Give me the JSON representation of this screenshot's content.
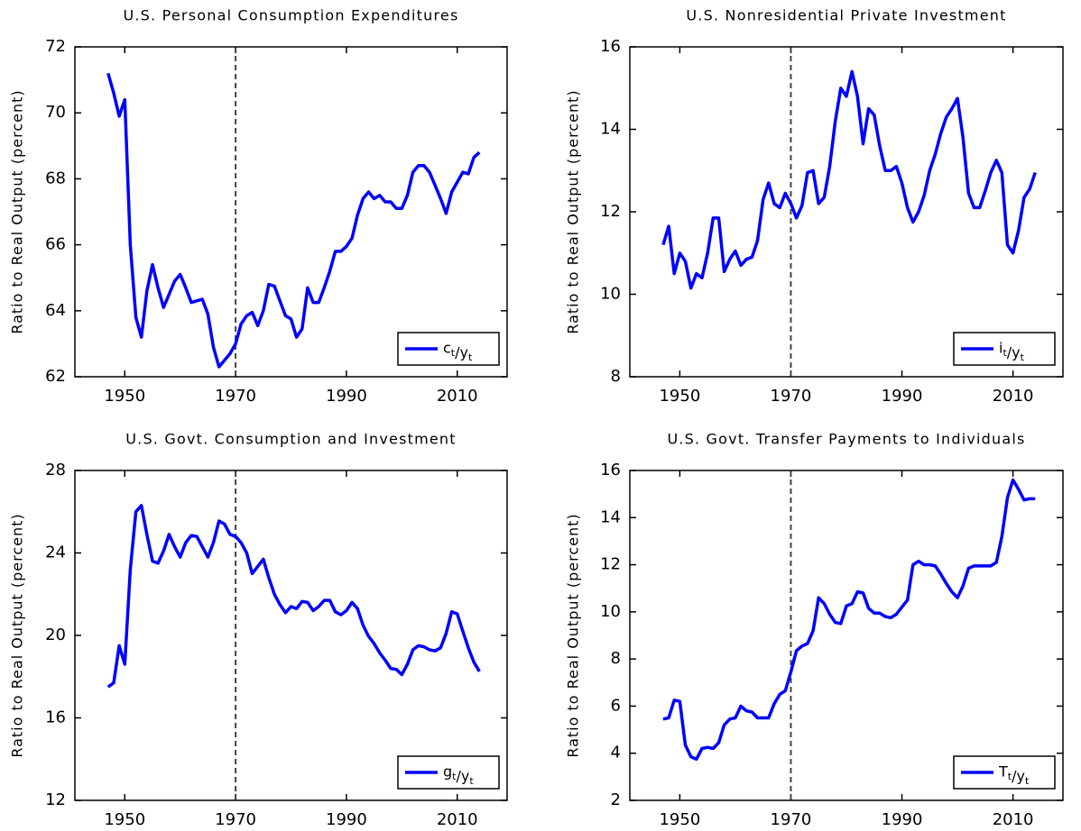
{
  "chart_data": [
    {
      "type": "line",
      "title": "U.S. Personal Consumption Expenditures",
      "ylabel": "Ratio to Real Output (percent)",
      "x": [
        1947,
        1948,
        1949,
        1950,
        1951,
        1952,
        1953,
        1954,
        1955,
        1956,
        1957,
        1958,
        1959,
        1960,
        1961,
        1962,
        1963,
        1964,
        1965,
        1966,
        1967,
        1968,
        1969,
        1970,
        1971,
        1972,
        1973,
        1974,
        1975,
        1976,
        1977,
        1978,
        1979,
        1980,
        1981,
        1982,
        1983,
        1984,
        1985,
        1986,
        1987,
        1988,
        1989,
        1990,
        1991,
        1992,
        1993,
        1994,
        1995,
        1996,
        1997,
        1998,
        1999,
        2000,
        2001,
        2002,
        2003,
        2004,
        2005,
        2006,
        2007,
        2008,
        2009,
        2010,
        2011,
        2012,
        2013,
        2014
      ],
      "series": [
        {
          "name": "ct/yt",
          "color": "#0000ff",
          "values": [
            71.2,
            70.6,
            69.9,
            70.4,
            66.0,
            63.8,
            63.2,
            64.6,
            65.4,
            64.7,
            64.1,
            64.5,
            64.9,
            65.1,
            64.7,
            64.25,
            64.3,
            64.35,
            63.9,
            62.9,
            62.3,
            62.5,
            62.7,
            63.0,
            63.6,
            63.85,
            63.95,
            63.55,
            64.0,
            64.8,
            64.75,
            64.3,
            63.85,
            63.75,
            63.2,
            63.45,
            64.7,
            64.25,
            64.25,
            64.7,
            65.2,
            65.8,
            65.8,
            65.95,
            66.2,
            66.9,
            67.4,
            67.6,
            67.4,
            67.5,
            67.3,
            67.3,
            67.1,
            67.1,
            67.5,
            68.2,
            68.4,
            68.4,
            68.2,
            67.8,
            67.4,
            66.95,
            67.6,
            67.9,
            68.2,
            68.15,
            68.65,
            68.8
          ]
        }
      ],
      "xlim": [
        1941,
        2019
      ],
      "xticks": [
        1950,
        1970,
        1990,
        2010
      ],
      "ylim": [
        62,
        72
      ],
      "yticks": [
        62,
        64,
        66,
        68,
        70,
        72
      ],
      "vline": 1970,
      "legend": "lower right"
    },
    {
      "type": "line",
      "title": "U.S. Nonresidential Private Investment",
      "ylabel": "Ratio to Real Output (percent)",
      "x": [
        1947,
        1948,
        1949,
        1950,
        1951,
        1952,
        1953,
        1954,
        1955,
        1956,
        1957,
        1958,
        1959,
        1960,
        1961,
        1962,
        1963,
        1964,
        1965,
        1966,
        1967,
        1968,
        1969,
        1970,
        1971,
        1972,
        1973,
        1974,
        1975,
        1976,
        1977,
        1978,
        1979,
        1980,
        1981,
        1982,
        1983,
        1984,
        1985,
        1986,
        1987,
        1988,
        1989,
        1990,
        1991,
        1992,
        1993,
        1994,
        1995,
        1996,
        1997,
        1998,
        1999,
        2000,
        2001,
        2002,
        2003,
        2004,
        2005,
        2006,
        2007,
        2008,
        2009,
        2010,
        2011,
        2012,
        2013,
        2014
      ],
      "series": [
        {
          "name": "it/yt",
          "color": "#0000ff",
          "values": [
            11.2,
            11.65,
            10.5,
            11.0,
            10.8,
            10.15,
            10.5,
            10.4,
            11.0,
            11.85,
            11.85,
            10.55,
            10.85,
            11.05,
            10.7,
            10.85,
            10.9,
            11.3,
            12.3,
            12.7,
            12.2,
            12.1,
            12.45,
            12.2,
            11.85,
            12.15,
            12.95,
            13.0,
            12.2,
            12.35,
            13.1,
            14.2,
            15.0,
            14.8,
            15.4,
            14.8,
            13.65,
            14.5,
            14.35,
            13.6,
            13.0,
            13.0,
            13.1,
            12.7,
            12.1,
            11.75,
            12.0,
            12.4,
            13.0,
            13.4,
            13.9,
            14.3,
            14.5,
            14.75,
            13.8,
            12.45,
            12.1,
            12.1,
            12.5,
            12.95,
            13.25,
            12.95,
            11.2,
            11.0,
            11.55,
            12.35,
            12.55,
            12.95
          ]
        }
      ],
      "xlim": [
        1941,
        2019
      ],
      "xticks": [
        1950,
        1970,
        1990,
        2010
      ],
      "ylim": [
        8,
        16
      ],
      "yticks": [
        8,
        10,
        12,
        14,
        16
      ],
      "vline": 1970,
      "legend": "lower right"
    },
    {
      "type": "line",
      "title": "U.S. Govt. Consumption and Investment",
      "ylabel": "Ratio to Real Output (percent)",
      "x": [
        1947,
        1948,
        1949,
        1950,
        1951,
        1952,
        1953,
        1954,
        1955,
        1956,
        1957,
        1958,
        1959,
        1960,
        1961,
        1962,
        1963,
        1964,
        1965,
        1966,
        1967,
        1968,
        1969,
        1970,
        1971,
        1972,
        1973,
        1974,
        1975,
        1976,
        1977,
        1978,
        1979,
        1980,
        1981,
        1982,
        1983,
        1984,
        1985,
        1986,
        1987,
        1988,
        1989,
        1990,
        1991,
        1992,
        1993,
        1994,
        1995,
        1996,
        1997,
        1998,
        1999,
        2000,
        2001,
        2002,
        2003,
        2004,
        2005,
        2006,
        2007,
        2008,
        2009,
        2010,
        2011,
        2012,
        2013,
        2014
      ],
      "series": [
        {
          "name": "gt/yt",
          "color": "#0000ff",
          "values": [
            17.5,
            17.7,
            19.5,
            18.6,
            23.2,
            26.0,
            26.3,
            24.9,
            23.6,
            23.5,
            24.1,
            24.9,
            24.3,
            23.8,
            24.5,
            24.85,
            24.8,
            24.3,
            23.8,
            24.5,
            25.55,
            25.4,
            24.9,
            24.8,
            24.5,
            24.0,
            23.0,
            23.35,
            23.7,
            22.8,
            22.0,
            21.5,
            21.1,
            21.4,
            21.3,
            21.65,
            21.6,
            21.2,
            21.4,
            21.7,
            21.7,
            21.15,
            21.0,
            21.2,
            21.6,
            21.3,
            20.5,
            19.95,
            19.6,
            19.15,
            18.8,
            18.4,
            18.35,
            18.1,
            18.6,
            19.3,
            19.5,
            19.45,
            19.3,
            19.25,
            19.4,
            20.1,
            21.15,
            21.05,
            20.2,
            19.4,
            18.7,
            18.25
          ]
        }
      ],
      "xlim": [
        1941,
        2019
      ],
      "xticks": [
        1950,
        1970,
        1990,
        2010
      ],
      "ylim": [
        12,
        28
      ],
      "yticks": [
        12,
        16,
        20,
        24,
        28
      ],
      "vline": 1970,
      "legend": "lower right"
    },
    {
      "type": "line",
      "title": "U.S. Govt. Transfer Payments to Individuals",
      "ylabel": "Ratio to Real Output (percent)",
      "x": [
        1947,
        1948,
        1949,
        1950,
        1951,
        1952,
        1953,
        1954,
        1955,
        1956,
        1957,
        1958,
        1959,
        1960,
        1961,
        1962,
        1963,
        1964,
        1965,
        1966,
        1967,
        1968,
        1969,
        1970,
        1971,
        1972,
        1973,
        1974,
        1975,
        1976,
        1977,
        1978,
        1979,
        1980,
        1981,
        1982,
        1983,
        1984,
        1985,
        1986,
        1987,
        1988,
        1989,
        1990,
        1991,
        1992,
        1993,
        1994,
        1995,
        1996,
        1997,
        1998,
        1999,
        2000,
        2001,
        2002,
        2003,
        2004,
        2005,
        2006,
        2007,
        2008,
        2009,
        2010,
        2011,
        2012,
        2013,
        2014
      ],
      "series": [
        {
          "name": "Tt/yt",
          "color": "#0000ff",
          "values": [
            5.45,
            5.5,
            6.25,
            6.2,
            4.35,
            3.85,
            3.75,
            4.2,
            4.25,
            4.2,
            4.45,
            5.2,
            5.45,
            5.5,
            6.0,
            5.8,
            5.75,
            5.5,
            5.5,
            5.5,
            6.1,
            6.5,
            6.65,
            7.45,
            8.35,
            8.55,
            8.65,
            9.2,
            10.6,
            10.35,
            9.9,
            9.55,
            9.5,
            10.25,
            10.35,
            10.85,
            10.8,
            10.15,
            9.95,
            9.95,
            9.8,
            9.75,
            9.9,
            10.2,
            10.5,
            12.0,
            12.15,
            12.0,
            12.0,
            11.95,
            11.6,
            11.2,
            10.85,
            10.6,
            11.1,
            11.85,
            11.95,
            11.95,
            11.95,
            11.95,
            12.1,
            13.2,
            14.85,
            15.6,
            15.2,
            14.75,
            14.8,
            14.8
          ]
        }
      ],
      "xlim": [
        1941,
        2019
      ],
      "xticks": [
        1950,
        1970,
        1990,
        2010
      ],
      "ylim": [
        2,
        16
      ],
      "yticks": [
        2,
        4,
        6,
        8,
        10,
        12,
        14,
        16
      ],
      "vline": 1970,
      "legend": "lower right"
    }
  ]
}
